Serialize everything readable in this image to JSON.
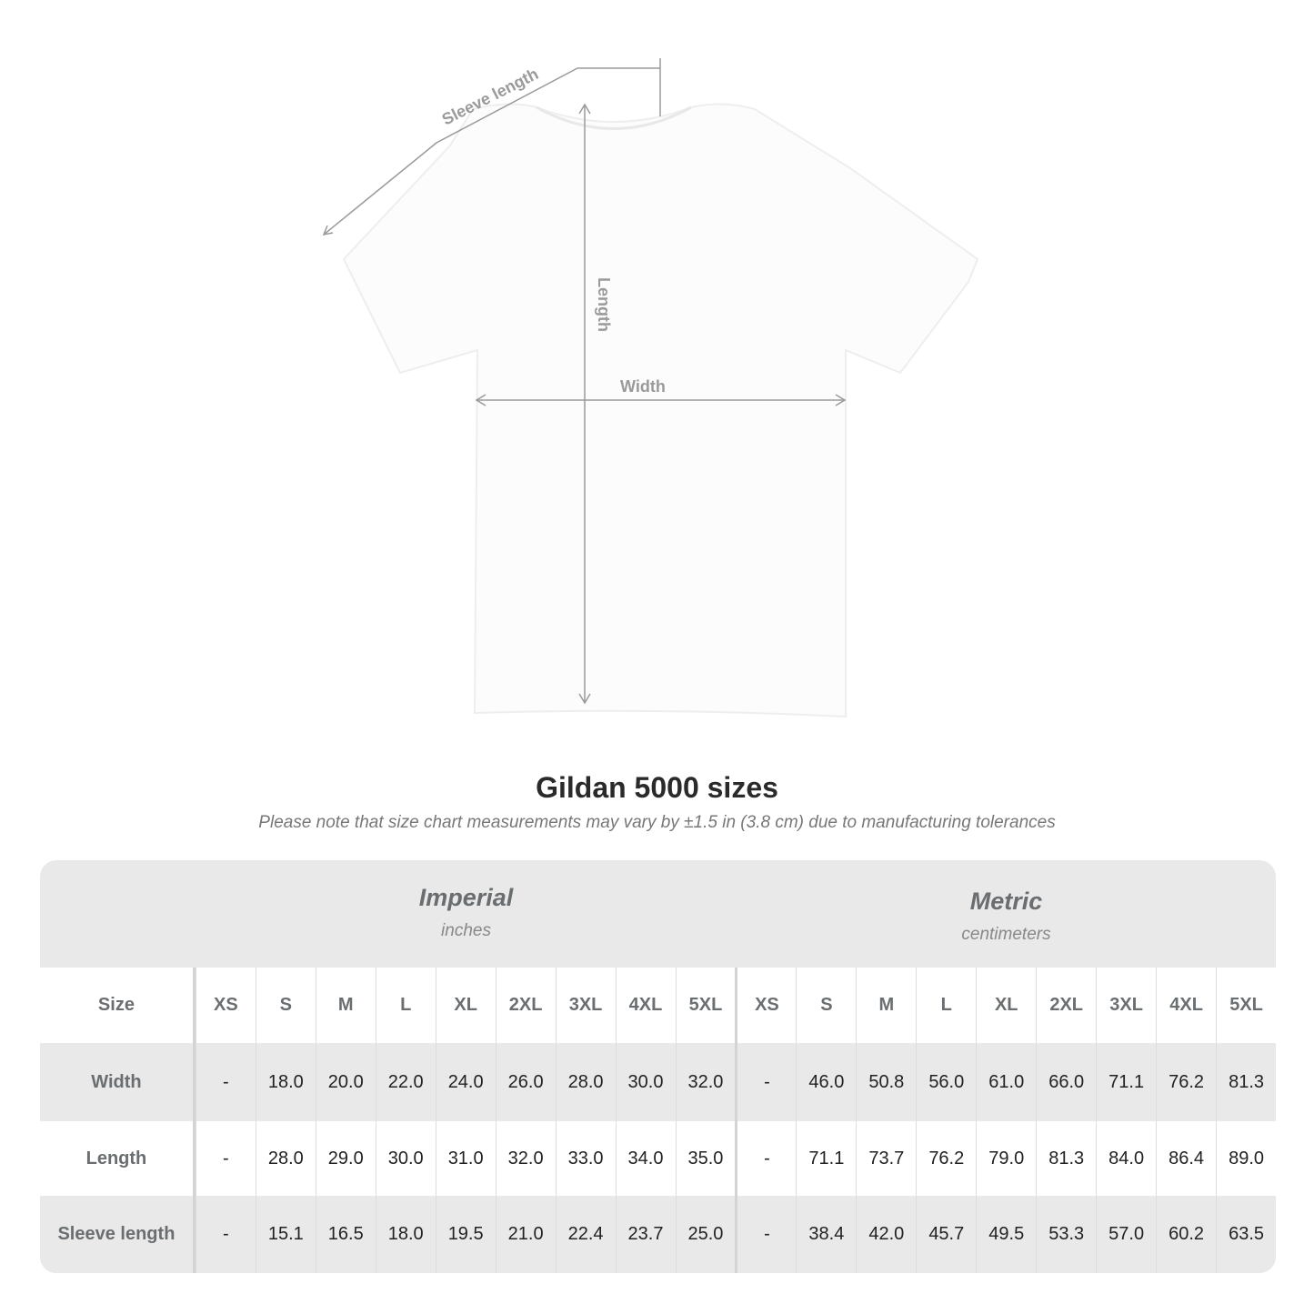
{
  "diagram": {
    "labels": {
      "sleeve": "Sleeve length",
      "length": "Length",
      "width": "Width"
    },
    "shirt_color": "#ffffff",
    "line_color": "#9a9a9a"
  },
  "title": "Gildan 5000 sizes",
  "note": "Please note that size chart measurements may vary by ±1.5 in (3.8 cm) due to manufacturing tolerances",
  "imperial": {
    "name": "Imperial",
    "unit": "inches"
  },
  "metric": {
    "name": "Metric",
    "unit": "centimeters"
  },
  "size_label": "Size",
  "sizes": [
    "XS",
    "S",
    "M",
    "L",
    "XL",
    "2XL",
    "3XL",
    "4XL",
    "5XL"
  ],
  "rows": [
    {
      "label": "Width",
      "imperial": [
        "-",
        "18.0",
        "20.0",
        "22.0",
        "24.0",
        "26.0",
        "28.0",
        "30.0",
        "32.0"
      ],
      "metric": [
        "-",
        "46.0",
        "50.8",
        "56.0",
        "61.0",
        "66.0",
        "71.1",
        "76.2",
        "81.3"
      ]
    },
    {
      "label": "Length",
      "imperial": [
        "-",
        "28.0",
        "29.0",
        "30.0",
        "31.0",
        "32.0",
        "33.0",
        "34.0",
        "35.0"
      ],
      "metric": [
        "-",
        "71.1",
        "73.7",
        "76.2",
        "79.0",
        "81.3",
        "84.0",
        "86.4",
        "89.0"
      ]
    },
    {
      "label": "Sleeve length",
      "imperial": [
        "-",
        "15.1",
        "16.5",
        "18.0",
        "19.5",
        "21.0",
        "22.4",
        "23.7",
        "25.0"
      ],
      "metric": [
        "-",
        "38.4",
        "42.0",
        "45.7",
        "49.5",
        "53.3",
        "57.0",
        "60.2",
        "63.5"
      ]
    }
  ]
}
